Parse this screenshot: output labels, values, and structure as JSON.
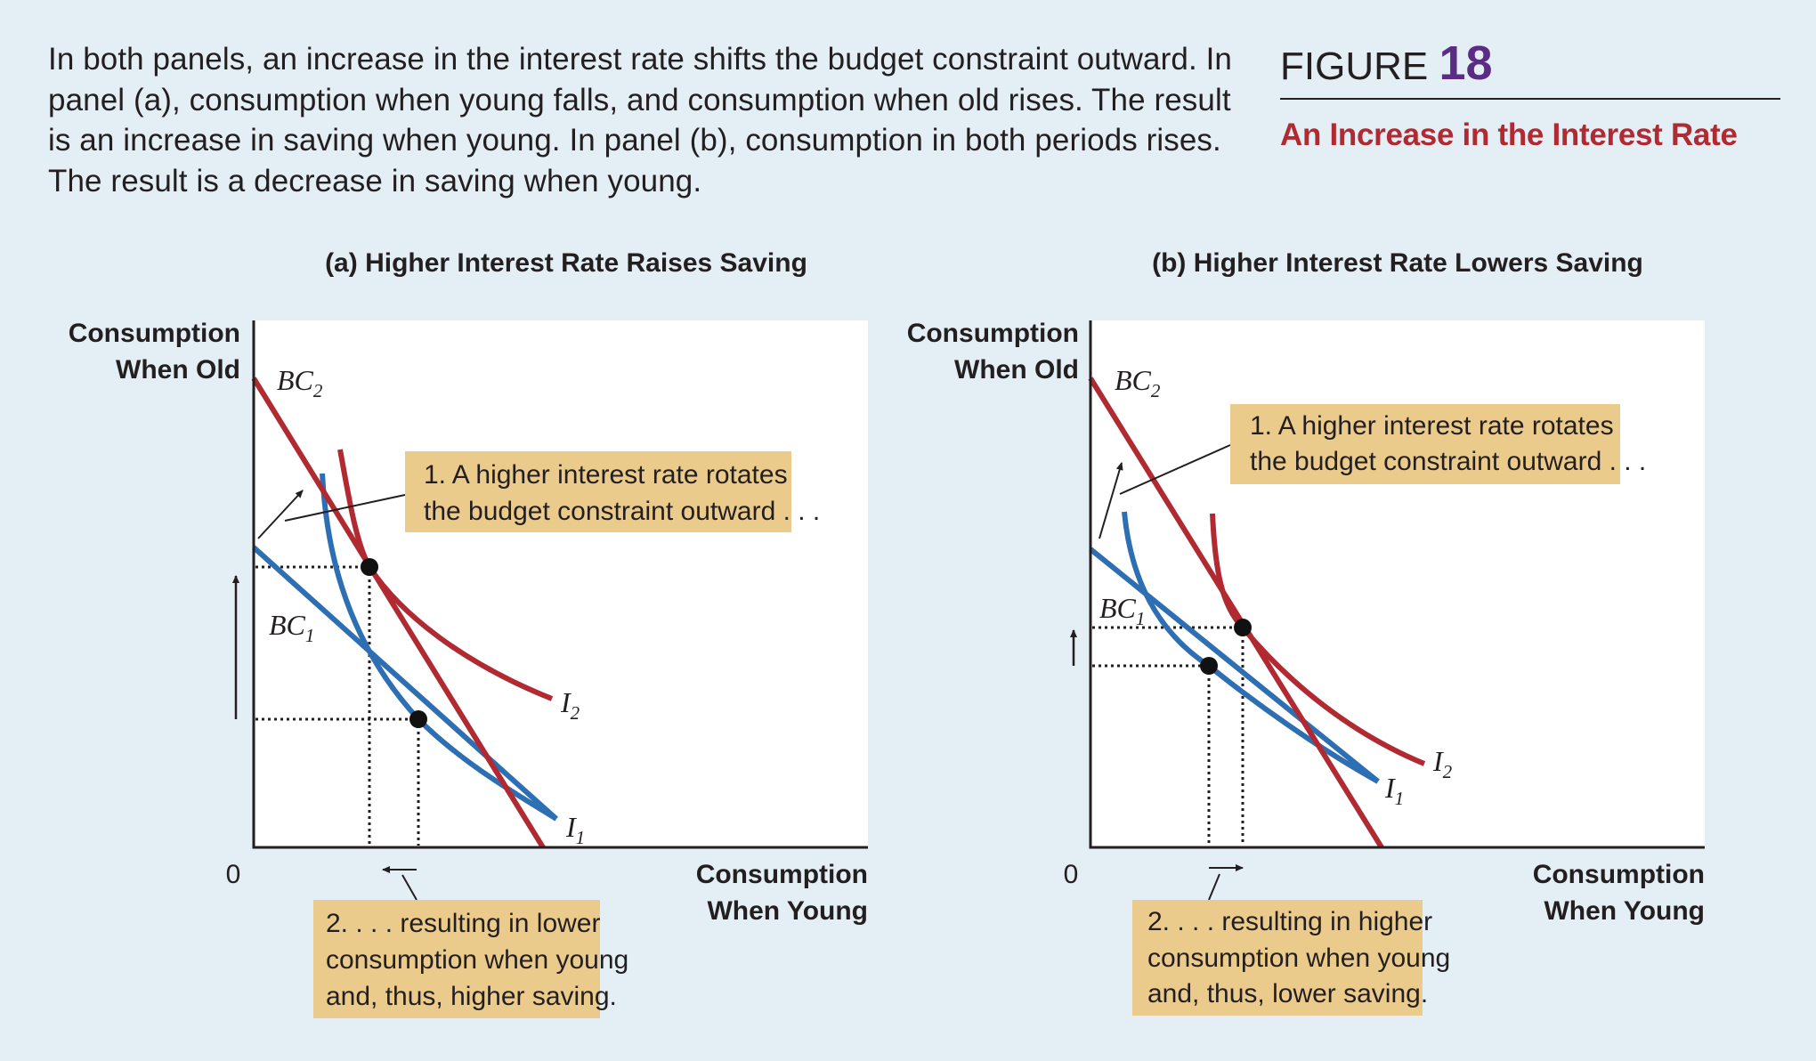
{
  "caption": "In both panels, an increase in the interest rate shifts the budget constraint outward. In panel (a), consumption when young falls, and consumption when old rises. The result is an increase in saving when young. In panel (b), consumption in both periods rises. The result is a decrease in saving when young.",
  "figure": {
    "prefix": "FIGURE",
    "number": "18",
    "title": "An Increase in the Interest Rate"
  },
  "colors": {
    "red": "#b12a32",
    "blue": "#2e6fb4",
    "note_box": "#ebcb8b",
    "background": "#e4eef5"
  },
  "panels": [
    {
      "title": "(a) Higher Interest Rate Raises Saving",
      "y_axis": [
        "Consumption",
        "When Old"
      ],
      "x_axis": [
        "Consumption",
        "When Young"
      ],
      "origin": "0",
      "bc2": {
        "label": "BC",
        "sub": "2"
      },
      "bc1": {
        "label": "BC",
        "sub": "1"
      },
      "i2": {
        "label": "I",
        "sub": "2"
      },
      "i1": {
        "label": "I",
        "sub": "1"
      },
      "note1": [
        "1. A higher interest rate rotates",
        "the budget constraint outward . . ."
      ],
      "note2": [
        "2. . . . resulting in lower",
        "consumption when young",
        "and, thus, higher saving."
      ]
    },
    {
      "title": "(b) Higher Interest Rate Lowers Saving",
      "y_axis": [
        "Consumption",
        "When Old"
      ],
      "x_axis": [
        "Consumption",
        "When Young"
      ],
      "origin": "0",
      "bc2": {
        "label": "BC",
        "sub": "2"
      },
      "bc1": {
        "label": "BC",
        "sub": "1"
      },
      "i2": {
        "label": "I",
        "sub": "2"
      },
      "i1": {
        "label": "I",
        "sub": "1"
      },
      "note1": [
        "1. A higher interest rate rotates",
        "the budget constraint outward . . ."
      ],
      "note2": [
        "2. . . . resulting in higher",
        "consumption when young",
        "and, thus, lower saving."
      ]
    }
  ]
}
